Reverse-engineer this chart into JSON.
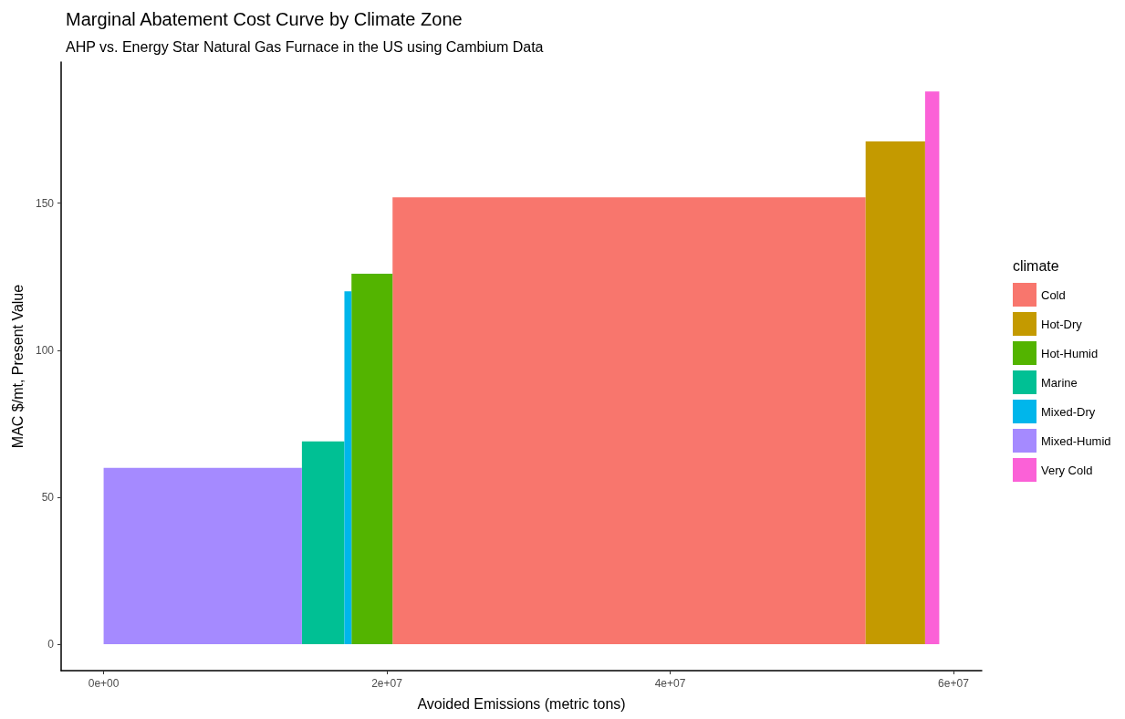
{
  "chart_data": {
    "type": "histogram",
    "title": "Marginal Abatement Cost Curve by Climate Zone",
    "subtitle": "AHP vs. Energy Star Natural Gas Furnace in the US using Cambium Data",
    "xlabel": "Avoided Emissions (metric tons)",
    "ylabel": "MAC $/mt, Present Value",
    "legend_title": "climate",
    "legend": "right",
    "bins": [
      0,
      14000000,
      17000000,
      17500000,
      20400000,
      53800000,
      58000000,
      59000000
    ],
    "series": [
      {
        "name": "Cold",
        "color": "#f8766d",
        "values": [
          null,
          null,
          null,
          null,
          152,
          null,
          null
        ]
      },
      {
        "name": "Hot-Dry",
        "color": "#c49a00",
        "values": [
          null,
          null,
          null,
          null,
          null,
          171,
          null
        ]
      },
      {
        "name": "Hot-Humid",
        "color": "#53b400",
        "values": [
          null,
          null,
          null,
          126,
          null,
          null,
          null
        ]
      },
      {
        "name": "Marine",
        "color": "#00c094",
        "values": [
          null,
          69,
          null,
          null,
          null,
          null,
          null
        ]
      },
      {
        "name": "Mixed-Dry",
        "color": "#00b6eb",
        "values": [
          null,
          null,
          120,
          null,
          null,
          null,
          null
        ]
      },
      {
        "name": "Mixed-Humid",
        "color": "#a58aff",
        "values": [
          60,
          null,
          null,
          null,
          null,
          null,
          null
        ]
      },
      {
        "name": "Very Cold",
        "color": "#fb61d7",
        "values": [
          null,
          null,
          null,
          null,
          null,
          null,
          188
        ]
      }
    ],
    "xlim": [
      -3000000,
      62000000
    ],
    "xticks": [
      {
        "value": 0,
        "label": "0e+00"
      },
      {
        "value": 20000000,
        "label": "2e+07"
      },
      {
        "value": 40000000,
        "label": "4e+07"
      },
      {
        "value": 60000000,
        "label": "6e+07"
      }
    ],
    "ylim": [
      -9,
      198
    ],
    "yticks": [
      0,
      50,
      100,
      150
    ],
    "grid": false
  }
}
